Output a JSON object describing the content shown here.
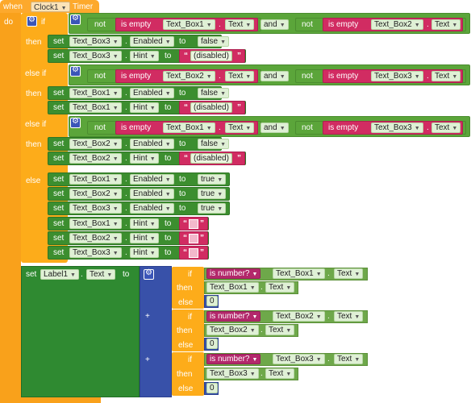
{
  "event": {
    "when": "when",
    "component": "Clock1",
    "event": "Timer",
    "do": "do"
  },
  "kw": {
    "if": "if",
    "then": "then",
    "else_if": "else if",
    "else": "else",
    "set": "set",
    "to": "to",
    "not": "not",
    "is_empty": "is empty",
    "and": "and",
    "dot": ".",
    "is_number": "is number?",
    "plus": "+",
    "quote": "“",
    "quote_end": "”"
  },
  "props": {
    "text": "Text",
    "enabled": "Enabled",
    "hint": "Hint"
  },
  "values": {
    "false": "false",
    "true": "true",
    "disabled": "(disabled)",
    "zero": "0"
  },
  "boxes": [
    "Text_Box1",
    "Text_Box2",
    "Text_Box3"
  ],
  "label": "Label1",
  "icons": {
    "gear": "gear-icon",
    "dropdown": "chevron-down-icon"
  }
}
